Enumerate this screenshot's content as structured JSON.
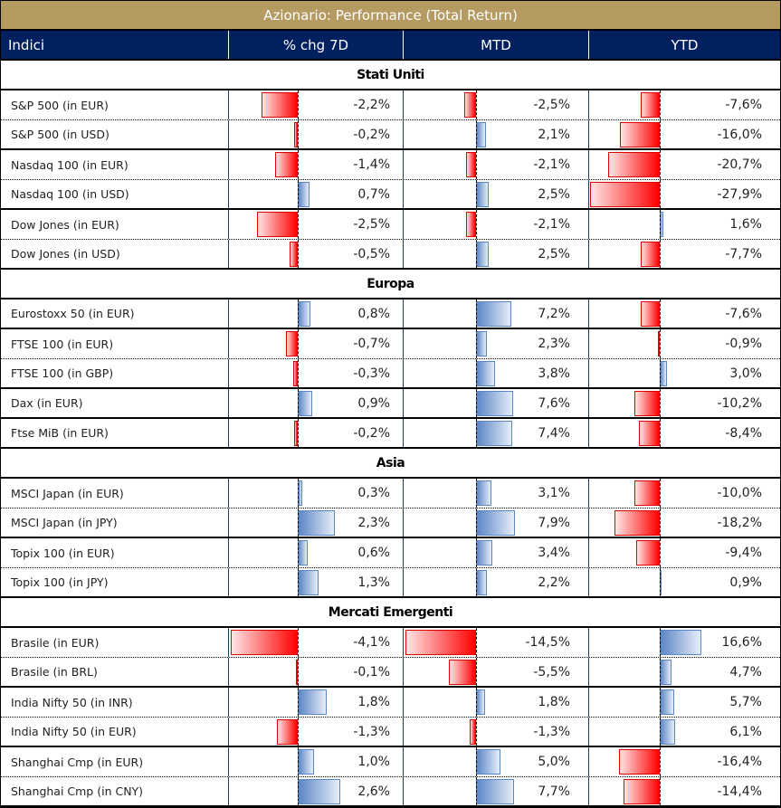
{
  "title": "Azionario: Performance (Total Return)",
  "colors": {
    "title_bg": "#b59a62",
    "header_bg": "#002060",
    "negative": "#ff0000",
    "positive": "#5b86c6"
  },
  "columns": [
    "Indici",
    "% chg 7D",
    "MTD",
    "YTD"
  ],
  "sections": [
    {
      "name": "Stati Uniti",
      "rows": [
        {
          "name": "S&P 500 (in EUR)",
          "chg7d": -2.2,
          "mtd": -2.5,
          "ytd": -7.6,
          "chg7d_label": "-2,2%",
          "mtd_label": "-2,5%",
          "ytd_label": "-7,6%"
        },
        {
          "name": "S&P 500 (in USD)",
          "chg7d": -0.2,
          "mtd": 2.1,
          "ytd": -16.0,
          "chg7d_label": "-0,2%",
          "mtd_label": "2,1%",
          "ytd_label": "-16,0%"
        },
        {
          "name": "Nasdaq 100 (in EUR)",
          "chg7d": -1.4,
          "mtd": -2.1,
          "ytd": -20.7,
          "chg7d_label": "-1,4%",
          "mtd_label": "-2,1%",
          "ytd_label": "-20,7%"
        },
        {
          "name": "Nasdaq 100 (in USD)",
          "chg7d": 0.7,
          "mtd": 2.5,
          "ytd": -27.9,
          "chg7d_label": "0,7%",
          "mtd_label": "2,5%",
          "ytd_label": "-27,9%"
        },
        {
          "name": "Dow Jones (in EUR)",
          "chg7d": -2.5,
          "mtd": -2.1,
          "ytd": 1.6,
          "chg7d_label": "-2,5%",
          "mtd_label": "-2,1%",
          "ytd_label": "1,6%"
        },
        {
          "name": "Dow Jones (in USD)",
          "chg7d": -0.5,
          "mtd": 2.5,
          "ytd": -7.7,
          "chg7d_label": "-0,5%",
          "mtd_label": "2,5%",
          "ytd_label": "-7,7%"
        }
      ]
    },
    {
      "name": "Europa",
      "rows": [
        {
          "name": "Eurostoxx 50 (in EUR)",
          "chg7d": 0.8,
          "mtd": 7.2,
          "ytd": -7.6,
          "chg7d_label": "0,8%",
          "mtd_label": "7,2%",
          "ytd_label": "-7,6%"
        },
        {
          "name": "FTSE 100 (in EUR)",
          "chg7d": -0.7,
          "mtd": 2.3,
          "ytd": -0.9,
          "chg7d_label": "-0,7%",
          "mtd_label": "2,3%",
          "ytd_label": "-0,9%"
        },
        {
          "name": "FTSE 100 (in GBP)",
          "chg7d": -0.3,
          "mtd": 3.8,
          "ytd": 3.0,
          "chg7d_label": "-0,3%",
          "mtd_label": "3,8%",
          "ytd_label": "3,0%"
        },
        {
          "name": "Dax (in EUR)",
          "chg7d": 0.9,
          "mtd": 7.6,
          "ytd": -10.2,
          "chg7d_label": "0,9%",
          "mtd_label": "7,6%",
          "ytd_label": "-10,2%"
        },
        {
          "name": "Ftse MiB (in EUR)",
          "chg7d": -0.2,
          "mtd": 7.4,
          "ytd": -8.4,
          "chg7d_label": "-0,2%",
          "mtd_label": "7,4%",
          "ytd_label": "-8,4%"
        }
      ]
    },
    {
      "name": "Asia",
      "rows": [
        {
          "name": "MSCI Japan (in EUR)",
          "chg7d": 0.3,
          "mtd": 3.1,
          "ytd": -10.0,
          "chg7d_label": "0,3%",
          "mtd_label": "3,1%",
          "ytd_label": "-10,0%"
        },
        {
          "name": "MSCI Japan (in JPY)",
          "chg7d": 2.3,
          "mtd": 7.9,
          "ytd": -18.2,
          "chg7d_label": "2,3%",
          "mtd_label": "7,9%",
          "ytd_label": "-18,2%"
        },
        {
          "name": "Topix 100 (in EUR)",
          "chg7d": 0.6,
          "mtd": 3.4,
          "ytd": -9.4,
          "chg7d_label": "0,6%",
          "mtd_label": "3,4%",
          "ytd_label": "-9,4%"
        },
        {
          "name": "Topix 100 (in JPY)",
          "chg7d": 1.3,
          "mtd": 2.2,
          "ytd": 0.9,
          "chg7d_label": "1,3%",
          "mtd_label": "2,2%",
          "ytd_label": "0,9%"
        }
      ]
    },
    {
      "name": "Mercati Emergenti",
      "rows": [
        {
          "name": "Brasile (in EUR)",
          "chg7d": -4.1,
          "mtd": -14.5,
          "ytd": 16.6,
          "chg7d_label": "-4,1%",
          "mtd_label": "-14,5%",
          "ytd_label": "16,6%"
        },
        {
          "name": "Brasile (in BRL)",
          "chg7d": -0.1,
          "mtd": -5.5,
          "ytd": 4.7,
          "chg7d_label": "-0,1%",
          "mtd_label": "-5,5%",
          "ytd_label": "4,7%"
        },
        {
          "name": "India Nifty 50 (in INR)",
          "chg7d": 1.8,
          "mtd": 1.8,
          "ytd": 5.7,
          "chg7d_label": "1,8%",
          "mtd_label": "1,8%",
          "ytd_label": "5,7%"
        },
        {
          "name": "India Nifty 50 (in EUR)",
          "chg7d": -1.3,
          "mtd": -1.3,
          "ytd": 6.1,
          "chg7d_label": "-1,3%",
          "mtd_label": "-1,3%",
          "ytd_label": "6,1%"
        },
        {
          "name": "Shanghai Cmp (in EUR)",
          "chg7d": 1.0,
          "mtd": 5.0,
          "ytd": -16.4,
          "chg7d_label": "1,0%",
          "mtd_label": "5,0%",
          "ytd_label": "-16,4%"
        },
        {
          "name": "Shanghai Cmp (in CNY)",
          "chg7d": 2.6,
          "mtd": 7.7,
          "ytd": -14.4,
          "chg7d_label": "2,6%",
          "mtd_label": "7,7%",
          "ytd_label": "-14,4%"
        }
      ]
    }
  ]
}
